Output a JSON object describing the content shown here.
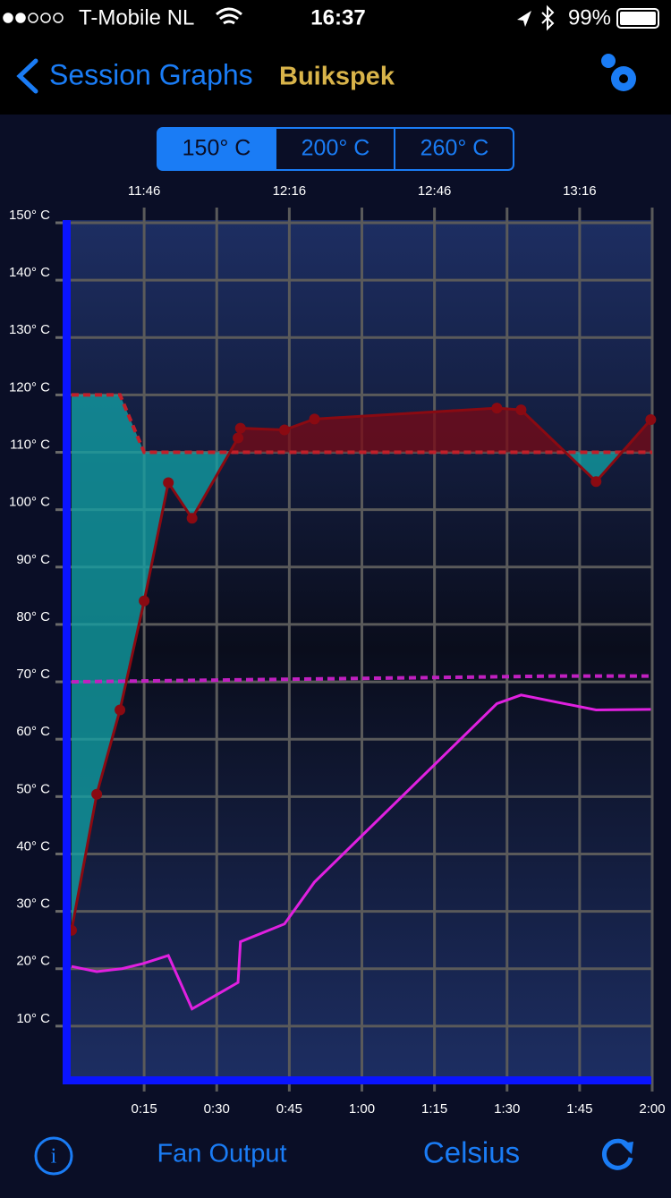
{
  "status_bar": {
    "carrier": "T-Mobile NL",
    "time": "16:37",
    "battery": "99%"
  },
  "nav": {
    "back": "Session Graphs",
    "title": "Buikspek"
  },
  "segments": [
    "150° C",
    "200° C",
    "260° C"
  ],
  "chart_data": {
    "type": "line",
    "xlim": [
      0,
      120
    ],
    "ylim": [
      0,
      150
    ],
    "grid": true,
    "yticks": [
      {
        "value": 10,
        "label": "10° C"
      },
      {
        "value": 20,
        "label": "20° C"
      },
      {
        "value": 30,
        "label": "30° C"
      },
      {
        "value": 40,
        "label": "40° C"
      },
      {
        "value": 50,
        "label": "50° C"
      },
      {
        "value": 60,
        "label": "60° C"
      },
      {
        "value": 70,
        "label": "70° C"
      },
      {
        "value": 80,
        "label": "80° C"
      },
      {
        "value": 90,
        "label": "90° C"
      },
      {
        "value": 100,
        "label": "100° C"
      },
      {
        "value": 110,
        "label": "110° C"
      },
      {
        "value": 120,
        "label": "120° C"
      },
      {
        "value": 130,
        "label": "130° C"
      },
      {
        "value": 140,
        "label": "140° C"
      },
      {
        "value": 150,
        "label": "150° C"
      }
    ],
    "xticks": [
      {
        "value": 15,
        "label": "0:15"
      },
      {
        "value": 30,
        "label": "0:30"
      },
      {
        "value": 45,
        "label": "0:45"
      },
      {
        "value": 60,
        "label": "1:00"
      },
      {
        "value": 75,
        "label": "1:15"
      },
      {
        "value": 90,
        "label": "1:30"
      },
      {
        "value": 105,
        "label": "1:45"
      },
      {
        "value": 120,
        "label": "2:00"
      }
    ],
    "x2ticks": [
      {
        "value": 15,
        "label": "11:46"
      },
      {
        "value": 45,
        "label": "12:16"
      },
      {
        "value": 75,
        "label": "12:46"
      },
      {
        "value": 105,
        "label": "13:16"
      }
    ],
    "series": [
      {
        "color": "#c0202a",
        "dashed": true,
        "x": [
          0,
          10,
          15,
          120
        ],
        "values": [
          120,
          120,
          110,
          110
        ]
      },
      {
        "color": "#8a0a12",
        "markers": true,
        "x": [
          0,
          5.2,
          10,
          15,
          20,
          24.9,
          34.4,
          34.9,
          44,
          50.2,
          87.9,
          92.9,
          108.4,
          119.7
        ],
        "values": [
          26.7,
          50.4,
          65.1,
          84.1,
          104.7,
          98.5,
          112.5,
          114.2,
          113.9,
          115.8,
          117.7,
          117.4,
          104.9,
          115.7
        ]
      },
      {
        "color": "#c020c0",
        "dashed": true,
        "x": [
          0,
          100,
          120
        ],
        "values": [
          70,
          71,
          71
        ]
      },
      {
        "color": "#e020e0",
        "x": [
          0,
          5.2,
          10.4,
          14.8,
          20,
          24.9,
          34.4,
          34.9,
          44,
          50.2,
          87.9,
          92.9,
          108.4,
          119.7
        ],
        "values": [
          20.4,
          19.5,
          20,
          20.9,
          22.3,
          13,
          17.6,
          24.7,
          27.8,
          35.1,
          66.2,
          67.7,
          65.1,
          65.2
        ]
      }
    ],
    "fill_below": "#12a4a8",
    "fill_above": "#7a0a16"
  },
  "toolbar": {
    "left": "Fan Output",
    "right": "Celsius"
  }
}
